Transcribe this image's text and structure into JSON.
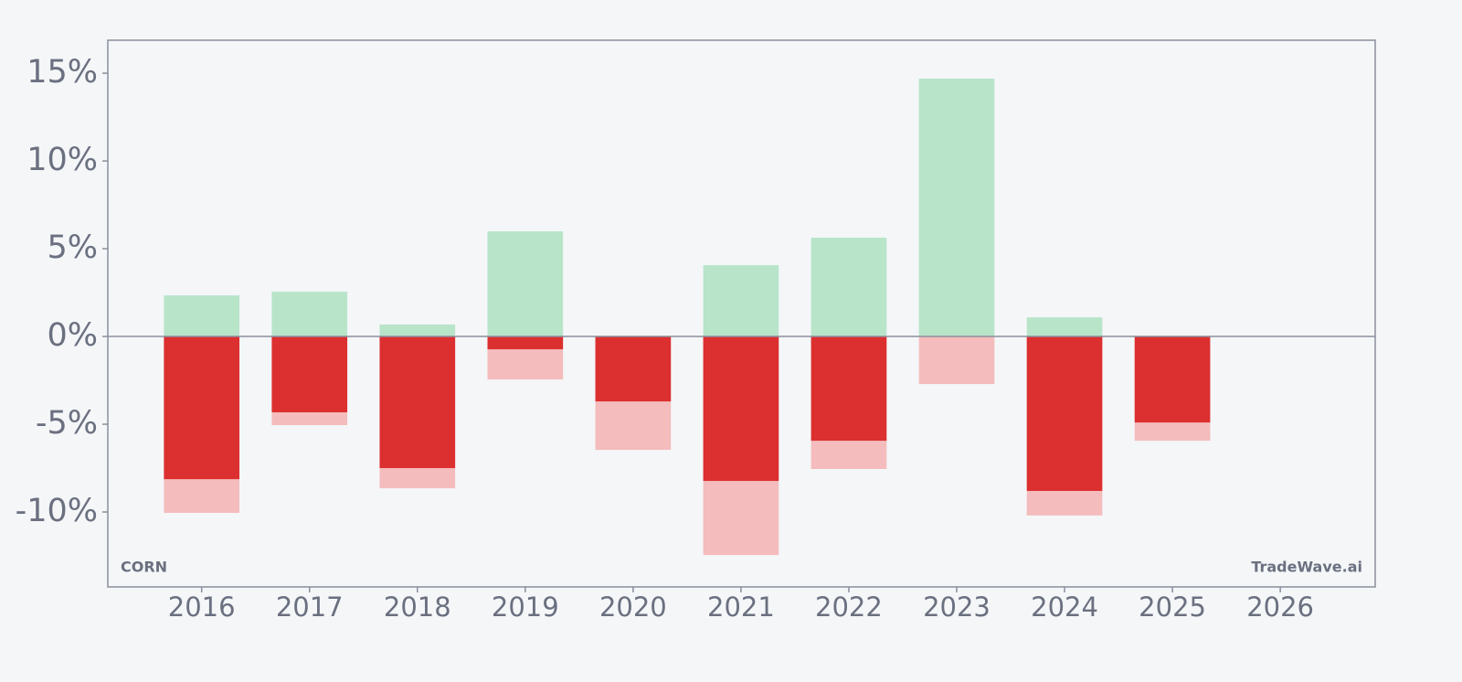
{
  "chart_data": {
    "type": "bar",
    "x": [
      2016,
      2017,
      2018,
      2019,
      2020,
      2021,
      2022,
      2023,
      2024,
      2025,
      2026
    ],
    "series": [
      {
        "color": "#b8e4c9",
        "values": [
          2.34,
          2.55,
          0.68,
          5.99,
          null,
          4.06,
          5.63,
          14.69,
          1.09,
          null,
          null
        ]
      },
      {
        "color": "#f4bcbc",
        "values": [
          -10.05,
          -5.05,
          -8.65,
          -2.45,
          -6.46,
          -12.45,
          -7.55,
          -2.71,
          -10.2,
          -5.94,
          null
        ]
      },
      {
        "color": "#dc2f2f",
        "values": [
          -8.13,
          -4.32,
          -7.5,
          -0.73,
          -3.7,
          -8.23,
          -5.94,
          null,
          -8.8,
          -4.9,
          null
        ]
      }
    ],
    "xlim": [
      2015.13,
      2026.88
    ],
    "xticks": [
      2016,
      2017,
      2018,
      2019,
      2020,
      2021,
      2022,
      2023,
      2024,
      2025,
      2026
    ],
    "ylim": [
      -14.27,
      16.88
    ],
    "yticks": [
      {
        "value": 15,
        "label": "15%"
      },
      {
        "value": 10,
        "label": "10%"
      },
      {
        "value": 5,
        "label": "5%"
      },
      {
        "value": 0,
        "label": "0%"
      },
      {
        "value": -5,
        "label": "-5%"
      },
      {
        "value": -10,
        "label": "-10%"
      }
    ],
    "annotations": [
      "CORN",
      "TradeWave.ai"
    ]
  }
}
